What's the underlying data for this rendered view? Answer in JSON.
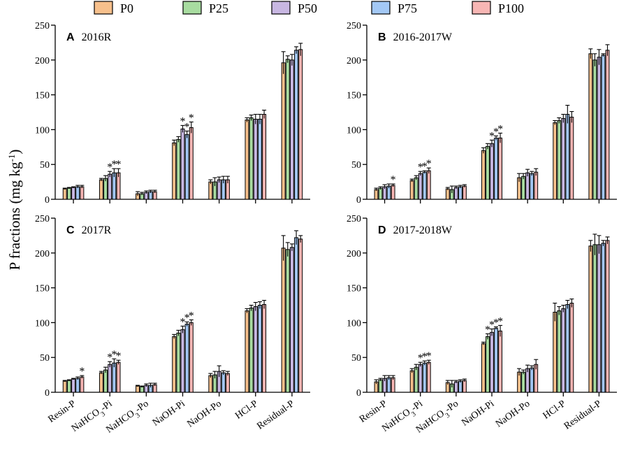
{
  "chart_data": {
    "type": "bar",
    "ylabel": {
      "main": "P fractions  (mg kg",
      "sup": "-1",
      "close": ")"
    },
    "legend": [
      {
        "name": "P0",
        "color": "#f7c08c"
      },
      {
        "name": "P25",
        "color": "#a8dca0"
      },
      {
        "name": "P50",
        "color": "#c8b7e2"
      },
      {
        "name": "P75",
        "color": "#a3c8f5"
      },
      {
        "name": "P100",
        "color": "#f7b6b4"
      }
    ],
    "categories": [
      "Resin-P",
      "NaHCO3-Pi",
      "NaHCO3-Po",
      "NaOH-Pi",
      "NaOH-Po",
      "HCl-P",
      "Residual-P"
    ],
    "category_labels": [
      {
        "main": "Resin-P",
        "sub": "",
        "tail": ""
      },
      {
        "main": "NaHCO",
        "sub": "3",
        "tail": "-Pi"
      },
      {
        "main": "NaHCO",
        "sub": "3",
        "tail": "-Po"
      },
      {
        "main": "NaOH-Pi",
        "sub": "",
        "tail": ""
      },
      {
        "main": "NaOH-Po",
        "sub": "",
        "tail": ""
      },
      {
        "main": "HCl-P",
        "sub": "",
        "tail": ""
      },
      {
        "main": "Residual-P",
        "sub": "",
        "tail": ""
      }
    ],
    "ylim": [
      0,
      250
    ],
    "yticks": [
      "0",
      "50",
      "100",
      "150",
      "200",
      "250"
    ],
    "panels": [
      {
        "letter": "A",
        "title": "2016R",
        "values": [
          [
            15,
            16,
            17,
            18,
            18
          ],
          [
            28,
            30,
            36,
            38,
            38
          ],
          [
            8,
            8,
            10,
            11,
            11
          ],
          [
            81,
            86,
            101,
            93,
            103
          ],
          [
            25,
            25,
            28,
            28,
            28
          ],
          [
            114,
            117,
            115,
            115,
            122
          ],
          [
            196,
            201,
            200,
            214,
            215
          ]
        ],
        "errors": [
          [
            1,
            1,
            1,
            2,
            2
          ],
          [
            2,
            4,
            4,
            6,
            6
          ],
          [
            3,
            2,
            2,
            2,
            2
          ],
          [
            4,
            4,
            5,
            5,
            8
          ],
          [
            3,
            6,
            4,
            5,
            5
          ],
          [
            3,
            4,
            7,
            7,
            6
          ],
          [
            16,
            5,
            8,
            5,
            9
          ]
        ],
        "significant": [
          [
            0,
            0,
            0,
            0,
            0
          ],
          [
            0,
            0,
            1,
            1,
            1
          ],
          [
            0,
            0,
            0,
            0,
            0
          ],
          [
            0,
            0,
            1,
            1,
            1
          ],
          [
            0,
            0,
            0,
            0,
            0
          ],
          [
            0,
            0,
            0,
            0,
            0
          ],
          [
            0,
            0,
            0,
            0,
            0
          ]
        ]
      },
      {
        "letter": "B",
        "title": "2016-2017W",
        "values": [
          [
            14,
            16,
            18,
            19,
            20
          ],
          [
            27,
            31,
            37,
            39,
            41
          ],
          [
            15,
            14,
            17,
            18,
            19
          ],
          [
            70,
            76,
            80,
            88,
            88
          ],
          [
            31,
            33,
            38,
            37,
            39
          ],
          [
            110,
            113,
            116,
            122,
            118
          ],
          [
            209,
            200,
            204,
            207,
            214
          ]
        ],
        "errors": [
          [
            2,
            2,
            3,
            3,
            2
          ],
          [
            2,
            3,
            3,
            2,
            4
          ],
          [
            2,
            5,
            2,
            2,
            2
          ],
          [
            4,
            4,
            5,
            3,
            7
          ],
          [
            6,
            4,
            5,
            3,
            5
          ],
          [
            3,
            4,
            6,
            13,
            8
          ],
          [
            7,
            9,
            11,
            2,
            8
          ]
        ],
        "significant": [
          [
            0,
            0,
            0,
            0,
            1
          ],
          [
            0,
            0,
            1,
            1,
            1
          ],
          [
            0,
            0,
            0,
            0,
            0
          ],
          [
            0,
            0,
            1,
            1,
            1
          ],
          [
            0,
            0,
            0,
            0,
            0
          ],
          [
            0,
            0,
            0,
            0,
            0
          ],
          [
            0,
            0,
            0,
            0,
            0
          ]
        ]
      },
      {
        "letter": "C",
        "title": "2017R",
        "values": [
          [
            16,
            17,
            19,
            20,
            22
          ],
          [
            28,
            32,
            40,
            42,
            43
          ],
          [
            9,
            8,
            10,
            10,
            11
          ],
          [
            80,
            85,
            90,
            98,
            100
          ],
          [
            24,
            25,
            30,
            28,
            27
          ],
          [
            117,
            121,
            123,
            125,
            126
          ],
          [
            207,
            205,
            208,
            222,
            220
          ]
        ],
        "errors": [
          [
            1,
            1,
            1,
            2,
            2
          ],
          [
            2,
            4,
            4,
            6,
            3
          ],
          [
            1,
            1,
            2,
            3,
            2
          ],
          [
            3,
            4,
            5,
            3,
            4
          ],
          [
            3,
            5,
            8,
            3,
            3
          ],
          [
            3,
            4,
            6,
            5,
            6
          ],
          [
            18,
            10,
            5,
            10,
            5
          ]
        ],
        "significant": [
          [
            0,
            0,
            0,
            0,
            1
          ],
          [
            0,
            0,
            1,
            1,
            1
          ],
          [
            0,
            0,
            0,
            0,
            0
          ],
          [
            0,
            0,
            1,
            1,
            1
          ],
          [
            0,
            0,
            0,
            0,
            0
          ],
          [
            0,
            0,
            0,
            0,
            0
          ],
          [
            0,
            0,
            0,
            0,
            0
          ]
        ]
      },
      {
        "letter": "D",
        "title": "2017-2018W",
        "values": [
          [
            15,
            18,
            20,
            21,
            21
          ],
          [
            31,
            36,
            40,
            42,
            43
          ],
          [
            14,
            12,
            15,
            16,
            17
          ],
          [
            70,
            80,
            86,
            92,
            88
          ],
          [
            29,
            29,
            34,
            35,
            40
          ],
          [
            115,
            117,
            120,
            126,
            128
          ],
          [
            210,
            212,
            212,
            214,
            218
          ]
        ],
        "errors": [
          [
            3,
            2,
            4,
            3,
            3
          ],
          [
            3,
            4,
            3,
            3,
            3
          ],
          [
            3,
            5,
            2,
            2,
            2
          ],
          [
            2,
            4,
            5,
            2,
            8
          ],
          [
            5,
            3,
            5,
            3,
            7
          ],
          [
            13,
            6,
            5,
            6,
            6
          ],
          [
            8,
            15,
            13,
            4,
            5
          ]
        ],
        "significant": [
          [
            0,
            0,
            0,
            0,
            0
          ],
          [
            0,
            0,
            1,
            1,
            1
          ],
          [
            0,
            0,
            0,
            0,
            0
          ],
          [
            0,
            1,
            1,
            1,
            1
          ],
          [
            0,
            0,
            0,
            0,
            0
          ],
          [
            0,
            0,
            0,
            0,
            0
          ],
          [
            0,
            0,
            0,
            0,
            0
          ]
        ]
      }
    ]
  }
}
